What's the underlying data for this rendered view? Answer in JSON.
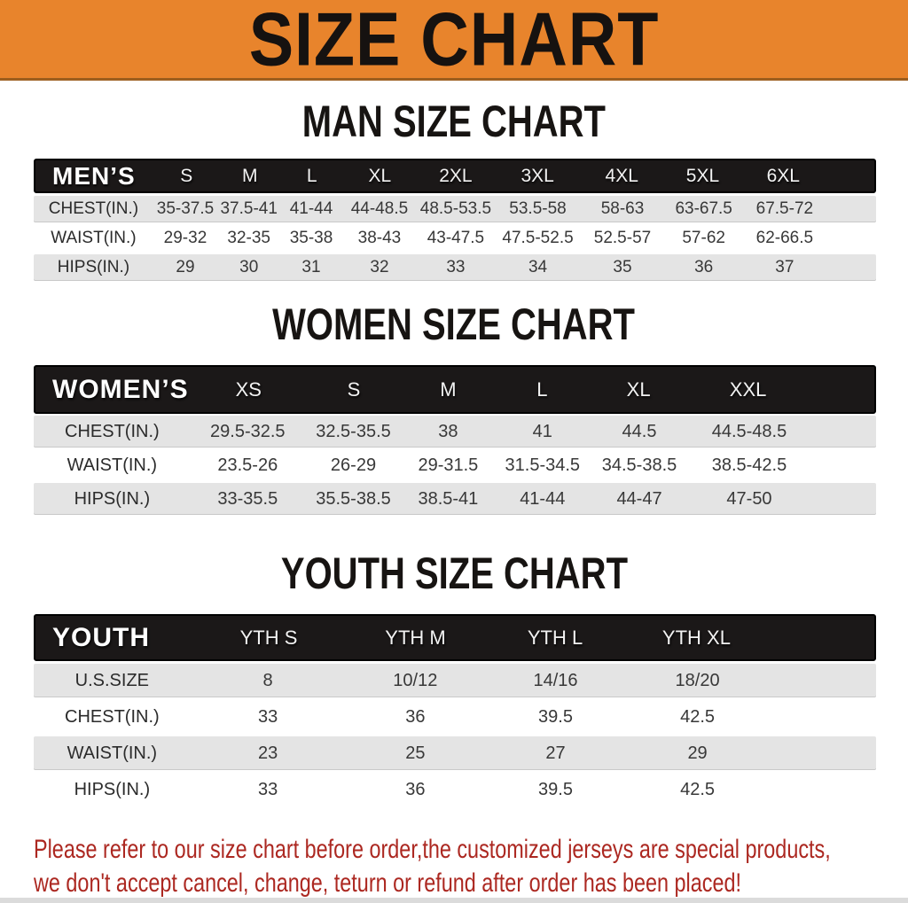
{
  "banner": {
    "title": "SIZE CHART"
  },
  "colors": {
    "banner_bg": "#E8842C",
    "bar_bg": "#1B1818",
    "stripe": "#E4E4E4",
    "footnote": "#AC2821"
  },
  "sections": {
    "man": {
      "heading": "MAN SIZE CHART",
      "table": {
        "corner": "MEN’S",
        "columns": [
          "S",
          "M",
          "L",
          "XL",
          "2XL",
          "3XL",
          "4XL",
          "5XL",
          "6XL"
        ],
        "rows": [
          {
            "label": "CHEST(IN.)",
            "values": [
              "35-37.5",
              "37.5-41",
              "41-44",
              "44-48.5",
              "48.5-53.5",
              "53.5-58",
              "58-63",
              "63-67.5",
              "67.5-72"
            ]
          },
          {
            "label": "WAIST(IN.)",
            "values": [
              "29-32",
              "32-35",
              "35-38",
              "38-43",
              "43-47.5",
              "47.5-52.5",
              "52.5-57",
              "57-62",
              "62-66.5"
            ]
          },
          {
            "label": "HIPS(IN.)",
            "values": [
              "29",
              "30",
              "31",
              "32",
              "33",
              "34",
              "35",
              "36",
              "37"
            ]
          }
        ]
      }
    },
    "women": {
      "heading": "WOMEN SIZE CHART",
      "table": {
        "corner": "WOMEN’S",
        "columns": [
          "XS",
          "S",
          "M",
          "L",
          "XL",
          "XXL"
        ],
        "rows": [
          {
            "label": "CHEST(IN.)",
            "values": [
              "29.5-32.5",
              "32.5-35.5",
              "38",
              "41",
              "44.5",
              "44.5-48.5"
            ]
          },
          {
            "label": "WAIST(IN.)",
            "values": [
              "23.5-26",
              "26-29",
              "29-31.5",
              "31.5-34.5",
              "34.5-38.5",
              "38.5-42.5"
            ]
          },
          {
            "label": "HIPS(IN.)",
            "values": [
              "33-35.5",
              "35.5-38.5",
              "38.5-41",
              "41-44",
              "44-47",
              "47-50"
            ]
          }
        ]
      }
    },
    "youth": {
      "heading": "YOUTH SIZE CHART",
      "table": {
        "corner": "YOUTH",
        "columns": [
          "YTH S",
          "YTH M",
          "YTH L",
          "YTH XL"
        ],
        "rows": [
          {
            "label": "U.S.SIZE",
            "values": [
              "8",
              "10/12",
              "14/16",
              "18/20"
            ]
          },
          {
            "label": "CHEST(IN.)",
            "values": [
              "33",
              "36",
              "39.5",
              "42.5"
            ]
          },
          {
            "label": "WAIST(IN.)",
            "values": [
              "23",
              "25",
              "27",
              "29"
            ]
          },
          {
            "label": "HIPS(IN.)",
            "values": [
              "33",
              "36",
              "39.5",
              "42.5"
            ]
          }
        ]
      }
    }
  },
  "footnote": {
    "line1": "Please refer to our size chart before order,the customized jerseys are special products,",
    "line2": "we don't accept cancel, change, teturn or refund after order has been placed!"
  }
}
